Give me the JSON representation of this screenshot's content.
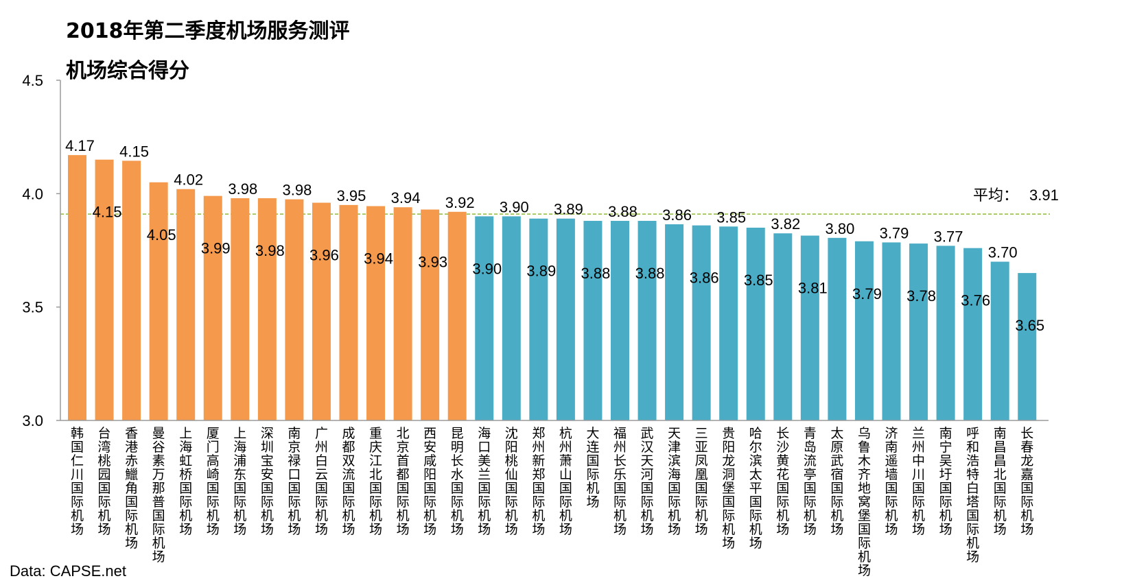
{
  "title": "2018年第二季度机场服务测评",
  "subtitle": "机场综合得分",
  "source": "Data: CAPSE.net",
  "colors": {
    "group1": "#F59A4C",
    "group2": "#4BACC6",
    "avgLine": "#8DB83F"
  },
  "chart_data": {
    "type": "bar",
    "title": "2018年第二季度机场服务测评",
    "subtitle": "机场综合得分",
    "xlabel": "",
    "ylabel": "",
    "ylim": [
      3.0,
      4.5
    ],
    "yticks": [
      "3.0",
      "3.5",
      "4.0",
      "4.5"
    ],
    "grid": false,
    "average": {
      "label": "平均：",
      "value": "3.91"
    },
    "categories": [
      "韩国仁川国际机场",
      "台湾桃园国际机场",
      "香港赤鱲角国际机场",
      "曼谷素万那普国际机场",
      "上海虹桥国际机场",
      "厦门高崎国际机场",
      "上海浦东国际机场",
      "深圳宝安国际机场",
      "南京禄口国际机场",
      "广州白云国际机场",
      "成都双流国际机场",
      "重庆江北国际机场",
      "北京首都国际机场",
      "西安咸阳国际机场",
      "昆明长水国际机场",
      "海口美兰国际机场",
      "沈阳桃仙国际机场",
      "郑州新郑国际机场",
      "杭州萧山国际机场",
      "大连国际机场",
      "福州长乐国际机场",
      "武汉天河国际机场",
      "天津滨海国际机场",
      "三亚凤凰国际机场",
      "贵阳龙洞堡国际机场",
      "哈尔滨太平国际机场",
      "长沙黄花国际机场",
      "青岛流亭国际机场",
      "太原武宿国际机场",
      "乌鲁木齐地窝堡国际机场",
      "济南遥墙国际机场",
      "兰州中川国际机场",
      "南宁吴圩国际机场",
      "呼和浩特白塔国际机场",
      "南昌昌北国际机场",
      "长春龙嘉国际机场"
    ],
    "labels_top": [
      "4.17",
      "",
      "4.15",
      "",
      "4.02",
      "",
      "3.98",
      "",
      "3.98",
      "",
      "3.95",
      "",
      "3.94",
      "",
      "3.92",
      "",
      "3.90",
      "",
      "3.89",
      "",
      "3.88",
      "",
      "3.86",
      "",
      "3.85",
      "",
      "3.82",
      "",
      "3.80",
      "",
      "3.79",
      "",
      "3.77",
      "",
      "3.70",
      ""
    ],
    "labels_inside": [
      "",
      "4.15",
      "",
      "4.05",
      "",
      "3.99",
      "",
      "3.98",
      "",
      "3.96",
      "",
      "3.94",
      "",
      "3.93",
      "",
      "3.90",
      "",
      "3.89",
      "",
      "3.88",
      "",
      "3.88",
      "",
      "3.86",
      "",
      "3.85",
      "",
      "3.81",
      "",
      "3.79",
      "",
      "3.78",
      "",
      "3.76",
      "",
      "3.65"
    ],
    "values": [
      4.17,
      4.15,
      4.145,
      4.05,
      4.02,
      3.99,
      3.98,
      3.98,
      3.975,
      3.96,
      3.95,
      3.945,
      3.94,
      3.93,
      3.92,
      3.9,
      3.9,
      3.89,
      3.89,
      3.88,
      3.88,
      3.88,
      3.865,
      3.86,
      3.855,
      3.85,
      3.825,
      3.815,
      3.805,
      3.79,
      3.785,
      3.78,
      3.77,
      3.76,
      3.7,
      3.65
    ],
    "group_split": 15
  }
}
